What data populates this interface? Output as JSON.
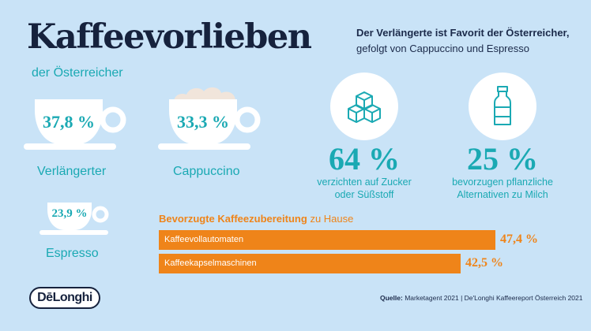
{
  "title": "Kaffeevorlieben",
  "subtitle": "der Österreicher",
  "cups": [
    {
      "label": "Verlängerter",
      "value": "37,8 %"
    },
    {
      "label": "Cappuccino",
      "value": "33,3 %"
    },
    {
      "label": "Espresso",
      "value": "23,9 %"
    }
  ],
  "headline": {
    "bold": "Der Verlängerte ist Favorit der Österreicher,",
    "normal": "gefolgt von Cappuccino und Espresso"
  },
  "stats": [
    {
      "icon": "sugar-cubes-icon",
      "value": "64 %",
      "line1": "verzichten auf Zucker",
      "line2": "oder Süßstoff"
    },
    {
      "icon": "milk-bottle-icon",
      "value": "25 %",
      "line1": "bevorzugen pflanzliche",
      "line2": "Alternativen zu Milch"
    }
  ],
  "bars_heading": {
    "bold": "Bevorzugte Kaffeezubereitung",
    "normal": "zu Hause"
  },
  "chart_data": {
    "type": "bar",
    "orientation": "horizontal",
    "title": "Bevorzugte Kaffeezubereitung zu Hause",
    "categories": [
      "Kaffeevollautomaten",
      "Kaffeekapselmaschinen"
    ],
    "values": [
      47.4,
      42.5
    ],
    "value_labels": [
      "47,4 %",
      "42,5 %"
    ],
    "color": "#ef8419"
  },
  "source": {
    "bold": "Quelle:",
    "text": "Marketagent 2021 | De'Longhi Kaffeereport Österreich 2021"
  },
  "logo": "DēLonghi",
  "colors": {
    "background": "#c9e3f7",
    "teal": "#1aa9b3",
    "navy": "#16223d",
    "orange": "#ef8419"
  }
}
